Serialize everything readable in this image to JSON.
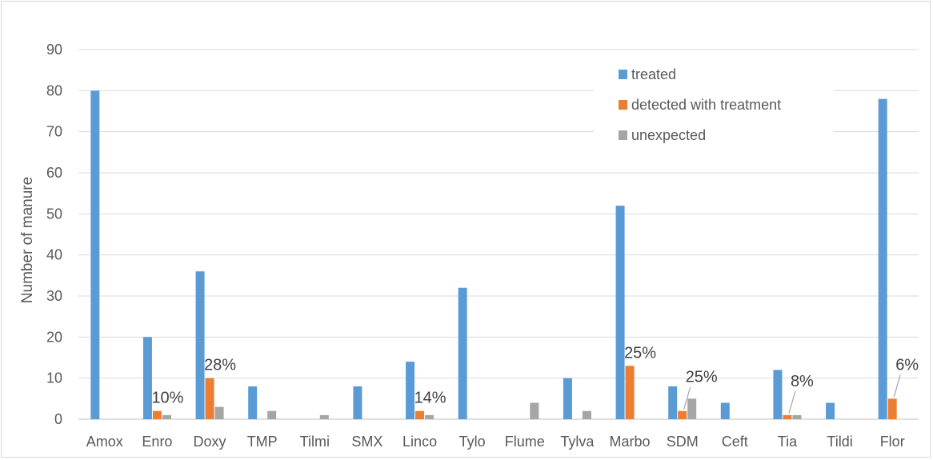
{
  "chart_data": {
    "type": "bar",
    "title": "",
    "xlabel": "",
    "ylabel": "Number of manure",
    "ylim": [
      0,
      90
    ],
    "yticks": [
      "0",
      "10",
      "20",
      "30",
      "40",
      "50",
      "60",
      "70",
      "80",
      "90"
    ],
    "grid": true,
    "legend_position": "top-right",
    "categories": [
      "Amox",
      "Enro",
      "Doxy",
      "TMP",
      "Tilmi",
      "SMX",
      "Linco",
      "Tylo",
      "Flume",
      "Tylva",
      "Marbo",
      "SDM",
      "Ceft",
      "Tia",
      "Tildi",
      "Flor"
    ],
    "series": [
      {
        "name": "treated",
        "color": "#5b9bd5",
        "values": [
          80,
          20,
          36,
          8,
          0,
          8,
          14,
          32,
          0,
          10,
          52,
          8,
          4,
          12,
          4,
          78
        ]
      },
      {
        "name": "detected with treatment",
        "color": "#ed7d31",
        "values": [
          0,
          2,
          10,
          0,
          0,
          0,
          2,
          0,
          0,
          0,
          13,
          2,
          0,
          1,
          0,
          5
        ]
      },
      {
        "name": "unexpected",
        "color": "#a5a5a5",
        "values": [
          0,
          1,
          3,
          2,
          1,
          0,
          1,
          0,
          4,
          2,
          0,
          5,
          0,
          1,
          0,
          0
        ]
      }
    ],
    "annotations": [
      {
        "category": "Enro",
        "text": "10%",
        "leader": false
      },
      {
        "category": "Doxy",
        "text": "28%",
        "leader": false
      },
      {
        "category": "Linco",
        "text": "14%",
        "leader": false
      },
      {
        "category": "Marbo",
        "text": "25%",
        "leader": false
      },
      {
        "category": "SDM",
        "text": "25%",
        "leader": true
      },
      {
        "category": "Tia",
        "text": "8%",
        "leader": true
      },
      {
        "category": "Flor",
        "text": "6%",
        "leader": true
      }
    ]
  }
}
